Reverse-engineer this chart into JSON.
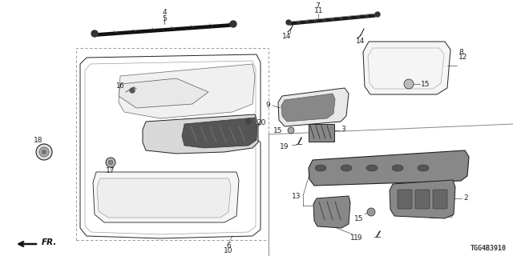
{
  "bg_color": "#ffffff",
  "diagram_code": "TGG4B3910",
  "line_color": "#222222",
  "dashed_color": "#888888"
}
